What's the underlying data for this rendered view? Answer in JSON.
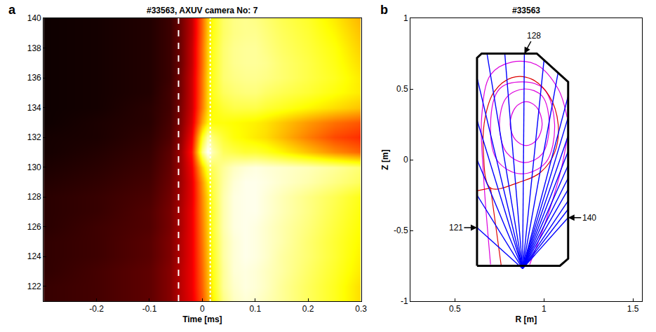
{
  "chart_data": [
    {
      "type": "heatmap",
      "panel": "a",
      "title": "#33563, AXUV camera No: 7",
      "xlabel": "Time [ms]",
      "xlim": [
        -0.3,
        0.3
      ],
      "xticks": [
        -0.2,
        -0.1,
        0,
        0.1,
        0.2,
        0.3
      ],
      "ylim": [
        121,
        140
      ],
      "yticks": [
        122,
        124,
        126,
        128,
        130,
        132,
        134,
        136,
        138,
        140
      ],
      "color": "hot",
      "zlim": [
        0,
        1
      ],
      "x": [
        -0.3,
        -0.2,
        -0.1,
        -0.06,
        -0.04,
        -0.02,
        0,
        0.01,
        0.02,
        0.04,
        0.06,
        0.08,
        0.1,
        0.12,
        0.15,
        0.2,
        0.25,
        0.3
      ],
      "y": [
        121,
        122,
        123,
        124,
        125,
        126,
        127,
        128,
        129,
        130,
        131,
        132,
        133,
        134,
        135,
        136,
        137,
        138,
        139,
        140
      ],
      "values": [
        [
          0.08,
          0.1,
          0.14,
          0.2,
          0.28,
          0.34,
          0.5,
          0.62,
          0.74,
          0.88,
          0.94,
          0.96,
          0.95,
          0.93,
          0.9,
          0.84,
          0.78,
          0.7
        ],
        [
          0.08,
          0.1,
          0.14,
          0.2,
          0.28,
          0.35,
          0.52,
          0.64,
          0.76,
          0.9,
          0.95,
          0.97,
          0.96,
          0.94,
          0.9,
          0.84,
          0.78,
          0.7
        ],
        [
          0.07,
          0.1,
          0.14,
          0.2,
          0.28,
          0.35,
          0.53,
          0.65,
          0.77,
          0.9,
          0.96,
          0.97,
          0.96,
          0.94,
          0.91,
          0.85,
          0.79,
          0.72
        ],
        [
          0.07,
          0.09,
          0.13,
          0.19,
          0.27,
          0.35,
          0.54,
          0.66,
          0.78,
          0.91,
          0.96,
          0.98,
          0.97,
          0.95,
          0.91,
          0.86,
          0.8,
          0.73
        ],
        [
          0.07,
          0.09,
          0.13,
          0.19,
          0.27,
          0.35,
          0.55,
          0.67,
          0.79,
          0.91,
          0.96,
          0.98,
          0.97,
          0.95,
          0.92,
          0.86,
          0.8,
          0.74
        ],
        [
          0.06,
          0.09,
          0.12,
          0.18,
          0.26,
          0.35,
          0.56,
          0.68,
          0.8,
          0.92,
          0.97,
          0.98,
          0.97,
          0.95,
          0.92,
          0.87,
          0.81,
          0.75
        ],
        [
          0.06,
          0.08,
          0.12,
          0.18,
          0.26,
          0.35,
          0.57,
          0.69,
          0.8,
          0.92,
          0.97,
          0.98,
          0.98,
          0.96,
          0.93,
          0.88,
          0.82,
          0.76
        ],
        [
          0.06,
          0.08,
          0.11,
          0.17,
          0.25,
          0.34,
          0.58,
          0.7,
          0.81,
          0.92,
          0.97,
          0.98,
          0.98,
          0.96,
          0.93,
          0.88,
          0.83,
          0.77
        ],
        [
          0.05,
          0.07,
          0.1,
          0.16,
          0.24,
          0.34,
          0.6,
          0.74,
          0.82,
          0.91,
          0.96,
          0.98,
          0.98,
          0.97,
          0.95,
          0.92,
          0.88,
          0.84
        ],
        [
          0.04,
          0.06,
          0.09,
          0.15,
          0.24,
          0.36,
          0.68,
          0.82,
          0.84,
          0.9,
          0.94,
          0.96,
          0.97,
          0.96,
          0.95,
          0.93,
          0.9,
          0.86
        ],
        [
          0.03,
          0.05,
          0.08,
          0.14,
          0.24,
          0.4,
          0.88,
          1.0,
          0.92,
          0.84,
          0.82,
          0.8,
          0.8,
          0.78,
          0.74,
          0.66,
          0.58,
          0.52
        ],
        [
          0.03,
          0.04,
          0.07,
          0.12,
          0.22,
          0.36,
          0.78,
          0.92,
          0.86,
          0.8,
          0.76,
          0.74,
          0.72,
          0.7,
          0.65,
          0.56,
          0.48,
          0.44
        ],
        [
          0.02,
          0.04,
          0.06,
          0.11,
          0.2,
          0.32,
          0.62,
          0.74,
          0.76,
          0.76,
          0.75,
          0.74,
          0.73,
          0.71,
          0.67,
          0.6,
          0.54,
          0.5
        ],
        [
          0.02,
          0.03,
          0.06,
          0.1,
          0.19,
          0.3,
          0.56,
          0.7,
          0.76,
          0.8,
          0.82,
          0.82,
          0.82,
          0.8,
          0.78,
          0.74,
          0.7,
          0.66
        ],
        [
          0.02,
          0.03,
          0.05,
          0.1,
          0.18,
          0.3,
          0.55,
          0.7,
          0.78,
          0.84,
          0.86,
          0.87,
          0.87,
          0.85,
          0.83,
          0.8,
          0.76,
          0.72
        ],
        [
          0.02,
          0.03,
          0.05,
          0.09,
          0.18,
          0.3,
          0.55,
          0.7,
          0.78,
          0.86,
          0.88,
          0.89,
          0.89,
          0.88,
          0.86,
          0.82,
          0.78,
          0.72
        ],
        [
          0.02,
          0.03,
          0.05,
          0.09,
          0.17,
          0.29,
          0.54,
          0.69,
          0.78,
          0.86,
          0.89,
          0.9,
          0.9,
          0.89,
          0.86,
          0.82,
          0.77,
          0.7
        ],
        [
          0.02,
          0.03,
          0.05,
          0.09,
          0.17,
          0.29,
          0.54,
          0.69,
          0.78,
          0.86,
          0.89,
          0.9,
          0.9,
          0.88,
          0.85,
          0.81,
          0.76,
          0.68
        ],
        [
          0.02,
          0.03,
          0.05,
          0.09,
          0.17,
          0.28,
          0.53,
          0.68,
          0.77,
          0.85,
          0.88,
          0.89,
          0.89,
          0.87,
          0.84,
          0.8,
          0.74,
          0.66
        ],
        [
          0.02,
          0.03,
          0.05,
          0.09,
          0.17,
          0.28,
          0.53,
          0.68,
          0.77,
          0.85,
          0.88,
          0.89,
          0.88,
          0.86,
          0.83,
          0.79,
          0.72,
          0.64
        ]
      ],
      "vlines": [
        {
          "x": -0.045,
          "line_style": "dash",
          "color": "#ffffff"
        },
        {
          "x": 0.015,
          "line_style": "dot",
          "color": "#ffffff"
        }
      ]
    },
    {
      "type": "line",
      "panel": "b",
      "title": "#33563",
      "xlabel": "R [m]",
      "ylabel": "Z [m]",
      "xlim": [
        0.25,
        1.55
      ],
      "xticks": [
        0.5,
        1,
        1.5
      ],
      "ylim": [
        -1,
        1
      ],
      "yticks": [
        -1,
        -0.5,
        0,
        0.5,
        1
      ],
      "series": [
        {
          "color": "#dd00dd",
          "line_style": "smooth",
          "x": [
            0.9,
            0.96,
            0.99,
            0.96,
            0.9,
            0.84,
            0.81,
            0.84,
            0.9
          ],
          "y": [
            0.1,
            0.14,
            0.25,
            0.37,
            0.41,
            0.37,
            0.25,
            0.14,
            0.1
          ]
        },
        {
          "color": "#dd00dd",
          "line_style": "smooth",
          "x": [
            0.89,
            0.99,
            1.03,
            0.99,
            0.89,
            0.79,
            0.75,
            0.79,
            0.89
          ],
          "y": [
            -0.02,
            0.04,
            0.25,
            0.45,
            0.5,
            0.44,
            0.25,
            0.05,
            -0.02
          ]
        },
        {
          "color": "#dd00dd",
          "line_style": "smooth",
          "x": [
            0.87,
            1.01,
            1.06,
            1.0,
            0.88,
            0.75,
            0.7,
            0.74,
            0.87
          ],
          "y": [
            -0.1,
            -0.02,
            0.25,
            0.5,
            0.55,
            0.5,
            0.25,
            -0.01,
            -0.1
          ]
        },
        {
          "color": "#dd00dd",
          "line_style": "smooth",
          "x": [
            0.7,
            0.66,
            0.65,
            0.7,
            0.82,
            0.96,
            1.08,
            1.13
          ],
          "y": [
            -0.74,
            -0.1,
            0.3,
            0.6,
            0.69,
            0.67,
            0.5,
            0.3
          ]
        },
        {
          "color": "#dd00dd",
          "line_style": "smooth",
          "x": [
            0.92,
            1.02,
            1.1,
            1.13
          ],
          "y": [
            -0.74,
            -0.4,
            -0.05,
            0.15
          ]
        },
        {
          "color": "#dd0000",
          "line_style": "smooth",
          "x": [
            0.7,
            0.66,
            0.67,
            0.72,
            0.82,
            0.93,
            1.03,
            1.08,
            1.06,
            0.98,
            0.86,
            0.7
          ],
          "y": [
            -0.2,
            0.05,
            0.3,
            0.48,
            0.58,
            0.57,
            0.45,
            0.25,
            0.05,
            -0.09,
            -0.16,
            -0.2
          ]
        },
        {
          "color": "#dd0000",
          "line_style": "solid",
          "x": [
            0.624,
            0.7,
            0.76
          ],
          "y": [
            -0.22,
            -0.2,
            -0.75
          ]
        },
        {
          "color": "#000000",
          "line_style": "solid",
          "x": [
            0.624,
            0.624,
            0.65,
            0.96,
            1.136,
            1.136,
            1.09,
            0.624
          ],
          "y": [
            -0.75,
            0.72,
            0.75,
            0.75,
            0.55,
            -0.7,
            -0.75,
            -0.75
          ]
        }
      ],
      "sightlines": {
        "color": "#0000ff",
        "origin": [
          0.88,
          -0.77
        ],
        "channels": [
          121,
          122,
          123,
          124,
          125,
          126,
          127,
          128,
          129,
          130,
          131,
          132,
          133,
          134,
          135,
          136,
          137,
          138,
          139,
          140
        ],
        "ends": [
          [
            0.624,
            -0.48
          ],
          [
            0.624,
            -0.25
          ],
          [
            0.624,
            0.0
          ],
          [
            0.624,
            0.28
          ],
          [
            0.624,
            0.58
          ],
          [
            0.68,
            0.75
          ],
          [
            0.78,
            0.75
          ],
          [
            0.89,
            0.75
          ],
          [
            1.0,
            0.7
          ],
          [
            1.08,
            0.62
          ],
          [
            1.136,
            0.45
          ],
          [
            1.136,
            0.3
          ],
          [
            1.136,
            0.17
          ],
          [
            1.136,
            0.06
          ],
          [
            1.136,
            -0.04
          ],
          [
            1.136,
            -0.13
          ],
          [
            1.136,
            -0.21
          ],
          [
            1.136,
            -0.29
          ],
          [
            1.136,
            -0.35
          ],
          [
            1.136,
            -0.41
          ]
        ],
        "labelled_channels": [
          "121",
          "128",
          "140"
        ]
      }
    }
  ]
}
